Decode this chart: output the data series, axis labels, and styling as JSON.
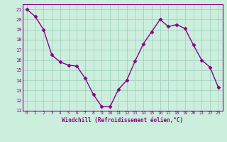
{
  "x": [
    0,
    1,
    2,
    3,
    4,
    5,
    6,
    7,
    8,
    9,
    10,
    11,
    12,
    13,
    14,
    15,
    16,
    17,
    18,
    19,
    20,
    21,
    22,
    23
  ],
  "y": [
    21.0,
    20.3,
    19.0,
    16.5,
    15.8,
    15.5,
    15.4,
    14.2,
    12.6,
    11.4,
    11.4,
    13.1,
    14.0,
    15.9,
    17.6,
    18.8,
    20.0,
    19.3,
    19.5,
    19.1,
    17.5,
    16.0,
    15.3,
    13.3
  ],
  "line_color": "#880088",
  "marker": "D",
  "marker_size": 2.5,
  "bg_color": "#cceedd",
  "grid_color": "#99ccbb",
  "xlabel": "Windchill (Refroidissement éolien,°C)",
  "xlabel_color": "#880088",
  "tick_color": "#880088",
  "xlim": [
    -0.5,
    23.5
  ],
  "ylim": [
    11,
    21.5
  ],
  "yticks": [
    11,
    12,
    13,
    14,
    15,
    16,
    17,
    18,
    19,
    20,
    21
  ],
  "xticks": [
    0,
    1,
    2,
    3,
    4,
    5,
    6,
    7,
    8,
    9,
    10,
    11,
    12,
    13,
    14,
    15,
    16,
    17,
    18,
    19,
    20,
    21,
    22,
    23
  ],
  "line_width": 1.0
}
